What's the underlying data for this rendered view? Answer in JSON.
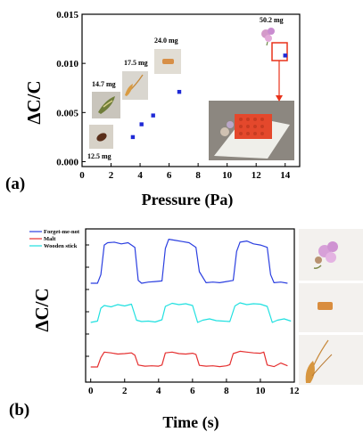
{
  "chart_data": [
    {
      "type": "scatter",
      "panel_label": "(a)",
      "xlabel": "Pressure (Pa)",
      "ylabel": "ΔC/C",
      "xlim": [
        0,
        15
      ],
      "ylim": [
        -0.0005,
        0.015
      ],
      "x_ticks": [
        "0",
        "2",
        "4",
        "6",
        "8",
        "10",
        "12",
        "14"
      ],
      "y_ticks": [
        "0.000",
        "0.005",
        "0.010",
        "0.015"
      ],
      "points": [
        {
          "x": 3.5,
          "y": 0.0025
        },
        {
          "x": 4.1,
          "y": 0.0038
        },
        {
          "x": 4.9,
          "y": 0.0047
        },
        {
          "x": 6.7,
          "y": 0.0071
        },
        {
          "x": 14.0,
          "y": 0.0108
        }
      ],
      "mass_labels": [
        "12.5 mg",
        "14.7 mg",
        "17.5 mg",
        "24.0 mg",
        "50.2 mg"
      ],
      "marker_color": "#1f2ad6",
      "highlight_color": "#e8321a"
    },
    {
      "type": "line",
      "panel_label": "(b)",
      "xlabel": "Time (s)",
      "ylabel": "ΔC/C",
      "xlim": [
        -0.3,
        12
      ],
      "x_ticks": [
        "0",
        "2",
        "4",
        "6",
        "8",
        "10",
        "12"
      ],
      "legend": [
        "Forget-me-not",
        "Malt",
        "Wooden stick"
      ],
      "legend_position": "top-left",
      "series": [
        {
          "name": "Forget-me-not",
          "color": "#2b3fe0",
          "t": [
            0,
            0.4,
            0.6,
            0.8,
            1.0,
            1.4,
            1.8,
            2.2,
            2.6,
            2.8,
            3.0,
            3.4,
            3.8,
            4.2,
            4.4,
            4.6,
            5.0,
            5.4,
            5.8,
            6.2,
            6.4,
            6.8,
            7.2,
            7.6,
            8.0,
            8.4,
            8.6,
            8.8,
            9.2,
            9.6,
            10.0,
            10.4,
            10.6,
            10.8,
            11.2,
            11.6
          ],
          "v": [
            0.0,
            0.0,
            0.15,
            0.66,
            0.7,
            0.71,
            0.68,
            0.7,
            0.62,
            0.05,
            0.0,
            0.02,
            0.03,
            0.04,
            0.6,
            0.76,
            0.74,
            0.72,
            0.7,
            0.62,
            0.2,
            0.01,
            0.02,
            0.01,
            0.03,
            0.05,
            0.55,
            0.71,
            0.73,
            0.68,
            0.66,
            0.62,
            0.15,
            0.01,
            0.02,
            0.0
          ]
        },
        {
          "name": "Wooden stick",
          "color": "#1fe0e0",
          "t": [
            0,
            0.4,
            0.6,
            0.8,
            1.2,
            1.6,
            2.0,
            2.4,
            2.7,
            3.0,
            3.4,
            3.8,
            4.2,
            4.4,
            4.8,
            5.2,
            5.6,
            6.0,
            6.3,
            6.6,
            7.0,
            7.4,
            7.8,
            8.2,
            8.5,
            8.8,
            9.2,
            9.6,
            10.0,
            10.4,
            10.7,
            11.0,
            11.4,
            11.8
          ],
          "v": [
            0.0,
            0.03,
            0.32,
            0.38,
            0.35,
            0.4,
            0.37,
            0.41,
            0.05,
            0.02,
            0.03,
            0.01,
            0.06,
            0.36,
            0.43,
            0.4,
            0.42,
            0.38,
            0.0,
            0.05,
            0.08,
            0.04,
            0.03,
            0.02,
            0.37,
            0.44,
            0.4,
            0.42,
            0.41,
            0.36,
            0.0,
            0.05,
            0.08,
            0.03
          ]
        },
        {
          "name": "Malt",
          "color": "#e53030",
          "t": [
            0,
            0.4,
            0.6,
            0.8,
            1.2,
            1.6,
            2.0,
            2.4,
            2.6,
            2.8,
            3.2,
            3.6,
            4.0,
            4.2,
            4.4,
            4.8,
            5.2,
            5.6,
            6.0,
            6.2,
            6.4,
            6.8,
            7.2,
            7.6,
            8.0,
            8.2,
            8.4,
            8.8,
            9.2,
            9.6,
            10.0,
            10.2,
            10.4,
            10.8,
            11.2,
            11.6
          ],
          "v": [
            0.0,
            0.0,
            0.24,
            0.38,
            0.36,
            0.33,
            0.34,
            0.36,
            0.3,
            0.05,
            0.02,
            0.03,
            0.02,
            0.05,
            0.36,
            0.38,
            0.34,
            0.33,
            0.35,
            0.32,
            0.04,
            0.02,
            0.03,
            0.01,
            0.03,
            0.06,
            0.34,
            0.4,
            0.38,
            0.36,
            0.35,
            0.38,
            0.05,
            0.01,
            0.1,
            0.03
          ]
        }
      ]
    }
  ]
}
